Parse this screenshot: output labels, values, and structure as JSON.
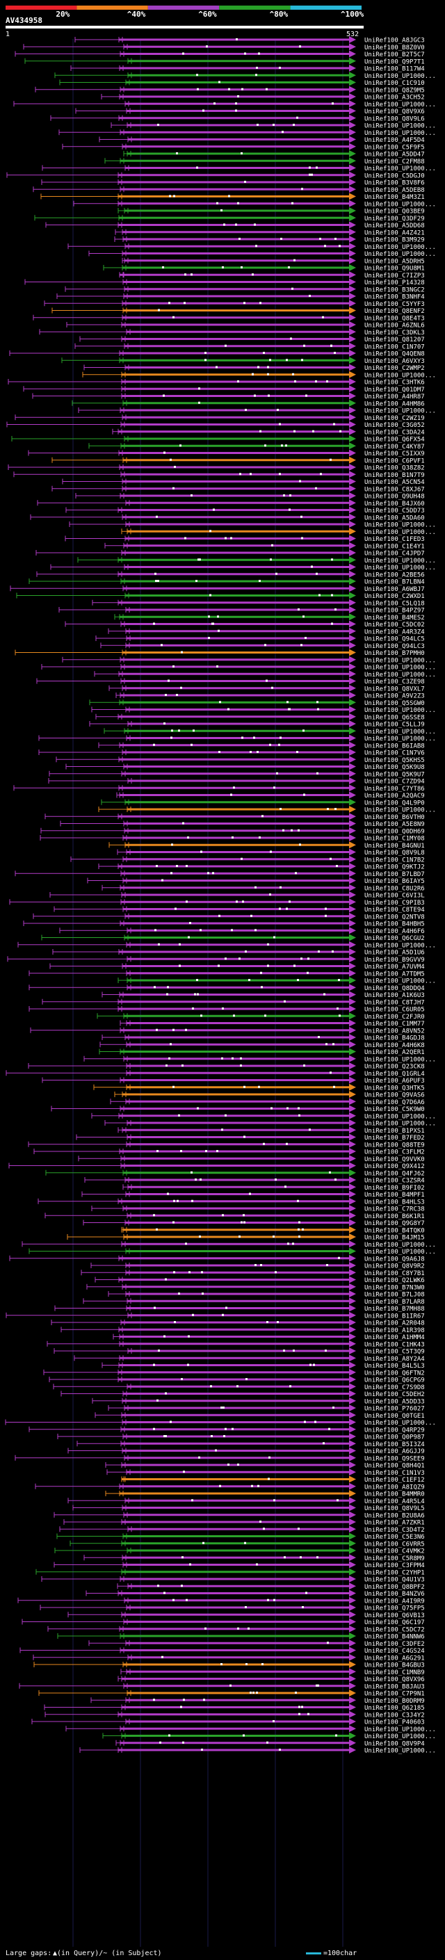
{
  "chart_data": {
    "type": "alignment-overview",
    "query_name": "AV434958",
    "query_start_label": "1",
    "query_end_label": "532",
    "identity_scale": {
      "labels": [
        "20%",
        "^40%",
        "^60%",
        "^80%",
        "^100%"
      ],
      "colors": [
        "#e8202a",
        "#f0821e",
        "#a040c0",
        "#28a028",
        "#28b8d8"
      ]
    },
    "row_colors": {
      "purple": "#b23cc8",
      "green": "#2aa32a",
      "orange": "#e8891e"
    },
    "hits": [
      {
        "id": "UniRef100_A8JGC3",
        "color": "purple"
      },
      {
        "id": "UniRef100_B8Z0V0",
        "color": "purple"
      },
      {
        "id": "UniRef100_B2T5C7",
        "color": "purple"
      },
      {
        "id": "UniRef100_Q9P7T1",
        "color": "green"
      },
      {
        "id": "UniRef100_B117W4",
        "color": "purple"
      },
      {
        "id": "UniRef100_UP1000...",
        "color": "green"
      },
      {
        "id": "UniRef100_C1C910",
        "color": "green"
      },
      {
        "id": "UniRef100_Q8Z9M5",
        "color": "purple"
      },
      {
        "id": "UniRef100_A3CH52",
        "color": "purple"
      },
      {
        "id": "UniRef100_UP1000...",
        "color": "purple"
      },
      {
        "id": "UniRef100_Q8V9X6",
        "color": "purple"
      },
      {
        "id": "UniRef100_Q8V9L6",
        "color": "purple"
      },
      {
        "id": "UniRef100_UP1000...",
        "color": "purple"
      },
      {
        "id": "UniRef100_UP1000...",
        "color": "purple"
      },
      {
        "id": "UniRef100_A4F5D4",
        "color": "purple"
      },
      {
        "id": "UniRef100_C5F9F5",
        "color": "purple"
      },
      {
        "id": "UniRef100_A5DD47",
        "color": "green"
      },
      {
        "id": "UniRef100_C2FM88",
        "color": "green"
      },
      {
        "id": "UniRef100_UP1000...",
        "color": "purple"
      },
      {
        "id": "UniRef100_C5DGJ0",
        "color": "purple"
      },
      {
        "id": "UniRef100_B3V8F6",
        "color": "purple"
      },
      {
        "id": "UniRef100_A5DEB8",
        "color": "purple"
      },
      {
        "id": "UniRef100_B4M3Z1",
        "color": "orange"
      },
      {
        "id": "UniRef100_UP1000...",
        "color": "purple"
      },
      {
        "id": "UniRef100_Q03BE9",
        "color": "green"
      },
      {
        "id": "UniRef100_Q3DF29",
        "color": "green"
      },
      {
        "id": "UniRef100_A5DD68",
        "color": "purple"
      },
      {
        "id": "UniRef100_A4Z421",
        "color": "purple"
      },
      {
        "id": "UniRef100_B3M929",
        "color": "purple"
      },
      {
        "id": "UniRef100_UP1000...",
        "color": "purple"
      },
      {
        "id": "UniRef100_UP1000...",
        "color": "purple"
      },
      {
        "id": "UniRef100_A5DRH5",
        "color": "purple"
      },
      {
        "id": "UniRef100_Q9U8M1",
        "color": "green"
      },
      {
        "id": "UniRef100_C7IZP3",
        "color": "purple"
      },
      {
        "id": "UniRef100_P14328",
        "color": "purple"
      },
      {
        "id": "UniRef100_B3NGC2",
        "color": "purple"
      },
      {
        "id": "UniRef100_B3NHF4",
        "color": "purple"
      },
      {
        "id": "UniRef100_C5YYF3",
        "color": "purple"
      },
      {
        "id": "UniRef100_Q8ENF2",
        "color": "orange"
      },
      {
        "id": "UniRef100_Q8E4T3",
        "color": "purple"
      },
      {
        "id": "UniRef100_A6ZNL6",
        "color": "purple"
      },
      {
        "id": "UniRef100_C3DKL3",
        "color": "purple"
      },
      {
        "id": "UniRef100_Q81207",
        "color": "purple"
      },
      {
        "id": "UniRef100_C1N707",
        "color": "purple"
      },
      {
        "id": "UniRef100_Q4QEN8",
        "color": "purple"
      },
      {
        "id": "UniRef100_A6VXY3",
        "color": "green"
      },
      {
        "id": "UniRef100_C2WMP2",
        "color": "purple"
      },
      {
        "id": "UniRef100_UP1000...",
        "color": "orange"
      },
      {
        "id": "UniRef100_C3HTK6",
        "color": "purple"
      },
      {
        "id": "UniRef100_Q01DM7",
        "color": "purple"
      },
      {
        "id": "UniRef100_A4HR87",
        "color": "purple"
      },
      {
        "id": "UniRef100_A4HM86",
        "color": "green"
      },
      {
        "id": "UniRef100_UP1000...",
        "color": "purple"
      },
      {
        "id": "UniRef100_C2WZ19",
        "color": "purple"
      },
      {
        "id": "UniRef100_C3G052",
        "color": "purple"
      },
      {
        "id": "UniRef100_C3DA24",
        "color": "purple"
      },
      {
        "id": "UniRef100_Q6FX54",
        "color": "green"
      },
      {
        "id": "UniRef100_C4KY87",
        "color": "green"
      },
      {
        "id": "UniRef100_C5IXX9",
        "color": "purple"
      },
      {
        "id": "UniRef100_C6PVF1",
        "color": "orange"
      },
      {
        "id": "UniRef100_Q38Z82",
        "color": "purple"
      },
      {
        "id": "UniRef100_B1N7T9",
        "color": "purple"
      },
      {
        "id": "UniRef100_A5CN54",
        "color": "purple"
      },
      {
        "id": "UniRef100_C8XJ67",
        "color": "purple"
      },
      {
        "id": "UniRef100_Q9UH48",
        "color": "purple"
      },
      {
        "id": "UniRef100_B4JX60",
        "color": "purple"
      },
      {
        "id": "UniRef100_C5DD73",
        "color": "purple"
      },
      {
        "id": "UniRef100_A5DA60",
        "color": "purple"
      },
      {
        "id": "UniRef100_UP1000...",
        "color": "purple"
      },
      {
        "id": "UniRef100_UP1000...",
        "color": "orange"
      },
      {
        "id": "UniRef100_C1FED3",
        "color": "purple"
      },
      {
        "id": "UniRef100_C1E4Y1",
        "color": "purple"
      },
      {
        "id": "UniRef100_C4JPD7",
        "color": "purple"
      },
      {
        "id": "UniRef100_UP1000...",
        "color": "green"
      },
      {
        "id": "UniRef100_UP1000...",
        "color": "purple"
      },
      {
        "id": "UniRef100_A2BE56",
        "color": "purple"
      },
      {
        "id": "UniRef100_B7LBN4",
        "color": "green"
      },
      {
        "id": "UniRef100_A6WBJ7",
        "color": "purple"
      },
      {
        "id": "UniRef100_C2WXD1",
        "color": "green"
      },
      {
        "id": "UniRef100_C5LQ18",
        "color": "purple"
      },
      {
        "id": "UniRef100_B4PZ97",
        "color": "purple"
      },
      {
        "id": "UniRef100_B4MES2",
        "color": "green"
      },
      {
        "id": "UniRef100_C5DC02",
        "color": "purple"
      },
      {
        "id": "UniRef100_A4R3Z4",
        "color": "purple"
      },
      {
        "id": "UniRef100_Q94LC5",
        "color": "purple"
      },
      {
        "id": "UniRef100_Q94LC3",
        "color": "purple"
      },
      {
        "id": "UniRef100_B7PMH0",
        "color": "orange"
      },
      {
        "id": "UniRef100_UP1000...",
        "color": "purple"
      },
      {
        "id": "UniRef100_UP1000...",
        "color": "purple"
      },
      {
        "id": "UniRef100_UP1000...",
        "color": "purple"
      },
      {
        "id": "UniRef100_C3ZE98",
        "color": "purple"
      },
      {
        "id": "UniRef100_Q8VXL7",
        "color": "purple"
      },
      {
        "id": "UniRef100_A9V2Z3",
        "color": "purple"
      },
      {
        "id": "UniRef100_Q5SGW0",
        "color": "green"
      },
      {
        "id": "UniRef100_UP1000...",
        "color": "purple"
      },
      {
        "id": "UniRef100_Q6SSE8",
        "color": "purple"
      },
      {
        "id": "UniRef100_C5LLJ9",
        "color": "purple"
      },
      {
        "id": "UniRef100_UP1000...",
        "color": "green"
      },
      {
        "id": "UniRef100_UP1000...",
        "color": "purple"
      },
      {
        "id": "UniRef100_B6IAB8",
        "color": "purple"
      },
      {
        "id": "UniRef100_C1N7V6",
        "color": "purple"
      },
      {
        "id": "UniRef100_Q5KHS5",
        "color": "purple"
      },
      {
        "id": "UniRef100_Q5K9U8",
        "color": "purple"
      },
      {
        "id": "UniRef100_Q5K9U7",
        "color": "purple"
      },
      {
        "id": "UniRef100_C7ZD94",
        "color": "purple"
      },
      {
        "id": "UniRef100_C7YT86",
        "color": "purple"
      },
      {
        "id": "UniRef100_A2QAC9",
        "color": "purple"
      },
      {
        "id": "UniRef100_Q4L9P0",
        "color": "green"
      },
      {
        "id": "UniRef100_UP1000...",
        "color": "orange"
      },
      {
        "id": "UniRef100_B6VTH0",
        "color": "purple"
      },
      {
        "id": "UniRef100_A5E8N9",
        "color": "purple"
      },
      {
        "id": "UniRef100_Q0DH69",
        "color": "purple"
      },
      {
        "id": "UniRef100_C1MY08",
        "color": "purple"
      },
      {
        "id": "UniRef100_B4GNU1",
        "color": "orange"
      },
      {
        "id": "UniRef100_Q8V9L8",
        "color": "purple"
      },
      {
        "id": "UniRef100_C1N7B2",
        "color": "purple"
      },
      {
        "id": "UniRef100_Q9KTJ2",
        "color": "purple"
      },
      {
        "id": "UniRef100_B7LBD7",
        "color": "purple"
      },
      {
        "id": "UniRef100_B6IAY5",
        "color": "purple"
      },
      {
        "id": "UniRef100_C8U2R6",
        "color": "purple"
      },
      {
        "id": "UniRef100_C6VI3L",
        "color": "purple"
      },
      {
        "id": "UniRef100_C9PIB3",
        "color": "purple"
      },
      {
        "id": "UniRef100_C8TE94",
        "color": "purple"
      },
      {
        "id": "UniRef100_Q2NTV8",
        "color": "purple"
      },
      {
        "id": "UniRef100_B4HBH5",
        "color": "purple"
      },
      {
        "id": "UniRef100_A4H6F6",
        "color": "purple"
      },
      {
        "id": "UniRef100_Q6CGU2",
        "color": "green"
      },
      {
        "id": "UniRef100_UP1000...",
        "color": "purple"
      },
      {
        "id": "UniRef100_A5D1U6",
        "color": "purple"
      },
      {
        "id": "UniRef100_B9GVV9",
        "color": "purple"
      },
      {
        "id": "UniRef100_A7UVM4",
        "color": "purple"
      },
      {
        "id": "UniRef100_A7TDM5",
        "color": "purple"
      },
      {
        "id": "UniRef100_UP1000...",
        "color": "green"
      },
      {
        "id": "UniRef100_Q8DDQ4",
        "color": "purple"
      },
      {
        "id": "UniRef100_A1K6U3",
        "color": "purple"
      },
      {
        "id": "UniRef100_C8TJH7",
        "color": "purple"
      },
      {
        "id": "UniRef100_C6UR05",
        "color": "purple"
      },
      {
        "id": "UniRef100_C2FJR0",
        "color": "green"
      },
      {
        "id": "UniRef100_C1MM77",
        "color": "purple"
      },
      {
        "id": "UniRef100_A8VN52",
        "color": "purple"
      },
      {
        "id": "UniRef100_B4GDJ8",
        "color": "purple"
      },
      {
        "id": "UniRef100_A4H6K8",
        "color": "purple"
      },
      {
        "id": "UniRef100_A2QER1",
        "color": "green"
      },
      {
        "id": "UniRef100_UP1000...",
        "color": "purple"
      },
      {
        "id": "UniRef100_Q23CK8",
        "color": "purple"
      },
      {
        "id": "UniRef100_Q1GRL4",
        "color": "purple"
      },
      {
        "id": "UniRef100_A6PUF3",
        "color": "purple"
      },
      {
        "id": "UniRef100_Q3HTK5",
        "color": "orange"
      },
      {
        "id": "UniRef100_Q9VAS6",
        "color": "orange"
      },
      {
        "id": "UniRef100_Q7D6A6",
        "color": "purple"
      },
      {
        "id": "UniRef100_C5K9W0",
        "color": "purple"
      },
      {
        "id": "UniRef100_UP1000...",
        "color": "purple"
      },
      {
        "id": "UniRef100_UP1000...",
        "color": "purple"
      },
      {
        "id": "UniRef100_B1PXS1",
        "color": "purple"
      },
      {
        "id": "UniRef100_B7FED2",
        "color": "purple"
      },
      {
        "id": "UniRef100_Q88TE9",
        "color": "purple"
      },
      {
        "id": "UniRef100_C3FLM2",
        "color": "purple"
      },
      {
        "id": "UniRef100_Q9VVK0",
        "color": "purple"
      },
      {
        "id": "UniRef100_Q9X412",
        "color": "purple"
      },
      {
        "id": "UniRef100_Q4FJ62",
        "color": "green"
      },
      {
        "id": "UniRef100_C3ZSR4",
        "color": "purple"
      },
      {
        "id": "UniRef100_B9FI02",
        "color": "purple"
      },
      {
        "id": "UniRef100_B4MPF1",
        "color": "purple"
      },
      {
        "id": "UniRef100_B4HLS3",
        "color": "purple"
      },
      {
        "id": "UniRef100_C7RC38",
        "color": "purple"
      },
      {
        "id": "UniRef100_B6K1R1",
        "color": "purple"
      },
      {
        "id": "UniRef100_Q9G8Y7",
        "color": "purple"
      },
      {
        "id": "UniRef100_B4TQK0",
        "color": "orange"
      },
      {
        "id": "UniRef100_B4JM15",
        "color": "orange"
      },
      {
        "id": "UniRef100_UP1000...",
        "color": "purple"
      },
      {
        "id": "UniRef100_UP1000...",
        "color": "green"
      },
      {
        "id": "UniRef100_Q9A6J8",
        "color": "purple"
      },
      {
        "id": "UniRef100_Q8V9R2",
        "color": "purple"
      },
      {
        "id": "UniRef100_C8Y7B1",
        "color": "purple"
      },
      {
        "id": "UniRef100_Q2LWK6",
        "color": "purple"
      },
      {
        "id": "UniRef100_B7N3W0",
        "color": "purple"
      },
      {
        "id": "UniRef100_B7LJ08",
        "color": "purple"
      },
      {
        "id": "UniRef100_B7LAR8",
        "color": "purple"
      },
      {
        "id": "UniRef100_B7MH88",
        "color": "purple"
      },
      {
        "id": "UniRef100_B1IR67",
        "color": "purple"
      },
      {
        "id": "UniRef100_A2R048",
        "color": "purple"
      },
      {
        "id": "UniRef100_A1R398",
        "color": "purple"
      },
      {
        "id": "UniRef100_A1HMM4",
        "color": "purple"
      },
      {
        "id": "UniRef100_C1HK43",
        "color": "purple"
      },
      {
        "id": "UniRef100_C5T3Q9",
        "color": "purple"
      },
      {
        "id": "UniRef100_A8Y2A4",
        "color": "purple"
      },
      {
        "id": "UniRef100_B4L5L3",
        "color": "purple"
      },
      {
        "id": "UniRef100_Q6FTN2",
        "color": "purple"
      },
      {
        "id": "UniRef100_Q6CPG9",
        "color": "purple"
      },
      {
        "id": "UniRef100_C7S9D8",
        "color": "purple"
      },
      {
        "id": "UniRef100_C5DEH2",
        "color": "purple"
      },
      {
        "id": "UniRef100_A5DD33",
        "color": "purple"
      },
      {
        "id": "UniRef100_P76027",
        "color": "purple"
      },
      {
        "id": "UniRef100_Q0TGE1",
        "color": "purple"
      },
      {
        "id": "UniRef100_UP1000...",
        "color": "purple"
      },
      {
        "id": "UniRef100_Q4RP29",
        "color": "purple"
      },
      {
        "id": "UniRef100_Q0P987",
        "color": "purple"
      },
      {
        "id": "UniRef100_B5I3Z4",
        "color": "purple"
      },
      {
        "id": "UniRef100_A6GJJ9",
        "color": "purple"
      },
      {
        "id": "UniRef100_Q9SEE9",
        "color": "purple"
      },
      {
        "id": "UniRef100_Q8H4Q1",
        "color": "purple"
      },
      {
        "id": "UniRef100_C1N1V3",
        "color": "purple"
      },
      {
        "id": "UniRef100_C1EF12",
        "color": "orange"
      },
      {
        "id": "UniRef100_A8IQZ9",
        "color": "purple"
      },
      {
        "id": "UniRef100_B4MMR0",
        "color": "orange"
      },
      {
        "id": "UniRef100_A4R5L4",
        "color": "purple"
      },
      {
        "id": "UniRef100_Q8V9L5",
        "color": "purple"
      },
      {
        "id": "UniRef100_B2U8A6",
        "color": "purple"
      },
      {
        "id": "UniRef100_A7ZKR1",
        "color": "purple"
      },
      {
        "id": "UniRef100_C3D4T2",
        "color": "purple"
      },
      {
        "id": "UniRef100_C5E3N6",
        "color": "green"
      },
      {
        "id": "UniRef100_C6VRR5",
        "color": "green"
      },
      {
        "id": "UniRef100_C4VMK2",
        "color": "green"
      },
      {
        "id": "UniRef100_C5R8M9",
        "color": "purple"
      },
      {
        "id": "UniRef100_C3FPM4",
        "color": "purple"
      },
      {
        "id": "UniRef100_C2YHP1",
        "color": "green"
      },
      {
        "id": "UniRef100_Q4U1V3",
        "color": "purple"
      },
      {
        "id": "UniRef100_Q8BPF2",
        "color": "purple"
      },
      {
        "id": "UniRef100_B4NZV6",
        "color": "purple"
      },
      {
        "id": "UniRef100_A4I9R9",
        "color": "purple"
      },
      {
        "id": "UniRef100_Q75FP5",
        "color": "purple"
      },
      {
        "id": "UniRef100_Q6VB13",
        "color": "purple"
      },
      {
        "id": "UniRef100_Q6C197",
        "color": "purple"
      },
      {
        "id": "UniRef100_C5DC72",
        "color": "purple"
      },
      {
        "id": "UniRef100_B4NNW6",
        "color": "green"
      },
      {
        "id": "UniRef100_C3DFE2",
        "color": "purple"
      },
      {
        "id": "UniRef100_C4GS24",
        "color": "purple"
      },
      {
        "id": "UniRef100_A6G291",
        "color": "purple"
      },
      {
        "id": "UniRef100_B4GBU3",
        "color": "orange"
      },
      {
        "id": "UniRef100_C1MNB9",
        "color": "purple"
      },
      {
        "id": "UniRef100_Q8VX96",
        "color": "purple"
      },
      {
        "id": "UniRef100_B8JAU3",
        "color": "purple"
      },
      {
        "id": "UniRef100_C7P9N1",
        "color": "orange"
      },
      {
        "id": "UniRef100_B0DRM9",
        "color": "purple"
      },
      {
        "id": "UniRef100_Q62185",
        "color": "purple"
      },
      {
        "id": "UniRef100_C3J4Y2",
        "color": "purple"
      },
      {
        "id": "UniRef100_P40603",
        "color": "purple"
      },
      {
        "id": "UniRef100_UP1000...",
        "color": "purple"
      },
      {
        "id": "UniRef100_UP1000...",
        "color": "green"
      },
      {
        "id": "UniRef100_Q8V9P4",
        "color": "purple"
      },
      {
        "id": "UniRef100_UP1000...",
        "color": "purple"
      }
    ],
    "footer": {
      "gaps_label": "Large gaps:",
      "gaps_legend": "▲(in Query)/~ (in Subject)",
      "scale_legend": "=100char"
    }
  }
}
